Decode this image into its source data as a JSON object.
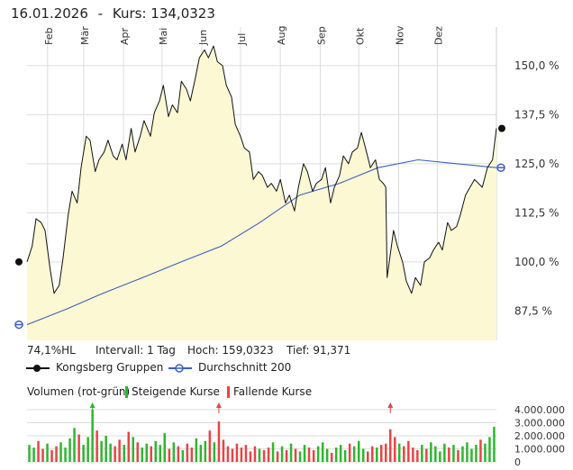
{
  "header": {
    "date": "16.01.2026",
    "separator": "-",
    "kurs_label": "Kurs:",
    "kurs_value": "134,0323"
  },
  "info": {
    "hl_pct": "74,1%HL",
    "intervall": "Intervall: 1 Tag",
    "hoch": "Hoch: 159,0323",
    "tief": "Tief:  91,371"
  },
  "legend": {
    "series1": "Kongsberg Gruppen",
    "series2": "Durchschnitt 200"
  },
  "volume_legend": {
    "title": "Volumen (rot-grün)",
    "up": "Steigende Kurse",
    "down": "Fallende Kurse"
  },
  "colors": {
    "price_line": "#111111",
    "area_fill": "#fdf8d4",
    "ma_line": "#3a5ec4",
    "grid": "#dddddd",
    "volume_up": "#2fb52f",
    "volume_down": "#e64545",
    "marker_dark": "#111111"
  },
  "chart_data": [
    {
      "type": "line",
      "title": "",
      "x_type": "date",
      "x_range": [
        "2025-01-16",
        "2026-01-16"
      ],
      "y_range": [
        80,
        158
      ],
      "y_ticks": [
        87.5,
        100,
        112.5,
        125,
        137.5,
        150
      ],
      "y_tick_labels": [
        "87,5 %",
        "100,0 %",
        "112,5 %",
        "125,0 %",
        "137,5 %",
        "150,0 %"
      ],
      "x_tick_labels": [
        "Feb",
        "Mär",
        "Apr",
        "Mai",
        "Jun",
        "Jul",
        "Aug",
        "Sep",
        "Okt",
        "Nov",
        "Dez"
      ],
      "x_tick_dates": [
        "2025-02-01",
        "2025-03-01",
        "2025-04-01",
        "2025-05-01",
        "2025-06-01",
        "2025-07-01",
        "2025-08-01",
        "2025-09-01",
        "2025-10-01",
        "2025-11-01",
        "2025-12-01"
      ],
      "grid": true,
      "series": [
        {
          "name": "Kongsberg Gruppen",
          "x": [
            "2025-01-16",
            "2025-01-20",
            "2025-01-23",
            "2025-01-27",
            "2025-01-30",
            "2025-02-03",
            "2025-02-06",
            "2025-02-10",
            "2025-02-13",
            "2025-02-17",
            "2025-02-20",
            "2025-02-24",
            "2025-02-27",
            "2025-03-03",
            "2025-03-06",
            "2025-03-10",
            "2025-03-13",
            "2025-03-17",
            "2025-03-20",
            "2025-03-24",
            "2025-03-27",
            "2025-03-31",
            "2025-04-03",
            "2025-04-07",
            "2025-04-10",
            "2025-04-14",
            "2025-04-17",
            "2025-04-22",
            "2025-04-25",
            "2025-04-29",
            "2025-05-02",
            "2025-05-06",
            "2025-05-09",
            "2025-05-13",
            "2025-05-16",
            "2025-05-20",
            "2025-05-23",
            "2025-05-27",
            "2025-05-30",
            "2025-06-03",
            "2025-06-06",
            "2025-06-10",
            "2025-06-13",
            "2025-06-17",
            "2025-06-20",
            "2025-06-24",
            "2025-06-27",
            "2025-07-01",
            "2025-07-04",
            "2025-07-08",
            "2025-07-11",
            "2025-07-15",
            "2025-07-18",
            "2025-07-22",
            "2025-07-25",
            "2025-07-29",
            "2025-08-01",
            "2025-08-05",
            "2025-08-08",
            "2025-08-12",
            "2025-08-15",
            "2025-08-19",
            "2025-08-22",
            "2025-08-26",
            "2025-08-29",
            "2025-09-02",
            "2025-09-05",
            "2025-09-09",
            "2025-09-12",
            "2025-09-16",
            "2025-09-19",
            "2025-09-23",
            "2025-09-26",
            "2025-09-30",
            "2025-10-03",
            "2025-10-07",
            "2025-10-10",
            "2025-10-14",
            "2025-10-17",
            "2025-10-20",
            "2025-10-22",
            "2025-10-23",
            "2025-10-28",
            "2025-10-31",
            "2025-11-04",
            "2025-11-07",
            "2025-11-11",
            "2025-11-14",
            "2025-11-18",
            "2025-11-21",
            "2025-11-25",
            "2025-11-28",
            "2025-12-02",
            "2025-12-05",
            "2025-12-09",
            "2025-12-12",
            "2025-12-16",
            "2025-12-19",
            "2025-12-23",
            "2025-12-30",
            "2026-01-05",
            "2026-01-09",
            "2026-01-13",
            "2026-01-16"
          ],
          "values": [
            100,
            104,
            111,
            110,
            108,
            98,
            92,
            94,
            101,
            112,
            118,
            115,
            124,
            132,
            131,
            123,
            126,
            128,
            131,
            127,
            126,
            130,
            126,
            134,
            128,
            132,
            136,
            132,
            138,
            141,
            145,
            137,
            140,
            138,
            146,
            144,
            141,
            147,
            152,
            154,
            152,
            155,
            151,
            150,
            145,
            142,
            135,
            132,
            129,
            128,
            121,
            123,
            122,
            119,
            120,
            118,
            121,
            115,
            117,
            113,
            119,
            125,
            123,
            118,
            120,
            121,
            124,
            115,
            119,
            122,
            127,
            125,
            128,
            129,
            133,
            128,
            124,
            126,
            121,
            120,
            119,
            96,
            108,
            104,
            100,
            95,
            92,
            96,
            94,
            100,
            101,
            103,
            105,
            103,
            110,
            108,
            109,
            112,
            117,
            121,
            119,
            124,
            126,
            134
          ]
        },
        {
          "name": "Durchschnitt 200",
          "x": [
            "2025-01-16",
            "2025-02-16",
            "2025-03-16",
            "2025-04-16",
            "2025-05-16",
            "2025-06-16",
            "2025-07-16",
            "2025-08-16",
            "2025-09-16",
            "2025-10-16",
            "2025-11-16",
            "2025-12-16",
            "2026-01-16"
          ],
          "values": [
            84,
            88,
            92,
            96,
            100,
            104,
            110,
            117,
            120,
            124,
            126,
            125,
            124
          ]
        }
      ],
      "end_value_labels": []
    },
    {
      "type": "bar",
      "title": "Volumen (rot-grün)",
      "y_range": [
        0,
        4000000
      ],
      "y_ticks": [
        0,
        1000000,
        2000000,
        3000000,
        4000000
      ],
      "y_tick_labels": [
        "0",
        "1.000.000",
        "2.000.000",
        "3.000.000",
        "4.000.000"
      ],
      "grid": true,
      "series": [
        {
          "name": "Volumen",
          "values": [
            1.3,
            1.1,
            1.6,
            1.0,
            1.4,
            0.9,
            1.2,
            1.5,
            1.1,
            1.8,
            2.6,
            2.1,
            1.3,
            1.9,
            4.2,
            2.4,
            1.6,
            2.0,
            1.4,
            1.2,
            1.7,
            1.3,
            2.3,
            1.9,
            1.5,
            1.1,
            1.4,
            1.2,
            1.6,
            1.3,
            2.2,
            1.0,
            1.5,
            1.2,
            0.9,
            1.4,
            1.1,
            1.8,
            1.3,
            1.6,
            2.4,
            1.5,
            3.1,
            1.7,
            1.2,
            1.0,
            1.4,
            1.1,
            1.3,
            0.8,
            1.2,
            1.0,
            0.9,
            1.1,
            1.5,
            0.8,
            1.2,
            0.9,
            1.4,
            1.0,
            0.8,
            1.3,
            1.1,
            0.9,
            1.2,
            1.5,
            1.0,
            0.7,
            1.1,
            1.3,
            0.9,
            1.4,
            1.2,
            1.6,
            1.0,
            0.8,
            1.2,
            1.1,
            1.3,
            1.4,
            2.5,
            1.9,
            1.4,
            1.2,
            1.6,
            1.1,
            0.9,
            1.3,
            1.0,
            1.5,
            1.2,
            0.8,
            1.4,
            1.1,
            1.3,
            0.9,
            1.2,
            1.5,
            1.0,
            1.3,
            1.7,
            1.4,
            1.9,
            2.7
          ],
          "direction": [
            "g",
            "g",
            "r",
            "r",
            "g",
            "r",
            "r",
            "g",
            "g",
            "g",
            "g",
            "r",
            "g",
            "g",
            "g",
            "r",
            "g",
            "g",
            "g",
            "r",
            "r",
            "g",
            "r",
            "g",
            "r",
            "g",
            "g",
            "r",
            "g",
            "g",
            "g",
            "r",
            "g",
            "r",
            "g",
            "r",
            "r",
            "g",
            "g",
            "g",
            "r",
            "g",
            "r",
            "r",
            "r",
            "r",
            "r",
            "r",
            "r",
            "r",
            "r",
            "g",
            "r",
            "r",
            "g",
            "r",
            "g",
            "r",
            "g",
            "r",
            "g",
            "g",
            "r",
            "r",
            "g",
            "g",
            "g",
            "r",
            "g",
            "g",
            "g",
            "r",
            "g",
            "g",
            "g",
            "r",
            "r",
            "g",
            "r",
            "r",
            "r",
            "r",
            "g",
            "r",
            "r",
            "r",
            "r",
            "g",
            "r",
            "g",
            "g",
            "g",
            "g",
            "r",
            "g",
            "r",
            "g",
            "g",
            "g",
            "g",
            "r",
            "g",
            "g",
            "g"
          ],
          "unit_multiplier": 1000000
        }
      ],
      "arrows_above": [
        14,
        42,
        80
      ]
    }
  ]
}
